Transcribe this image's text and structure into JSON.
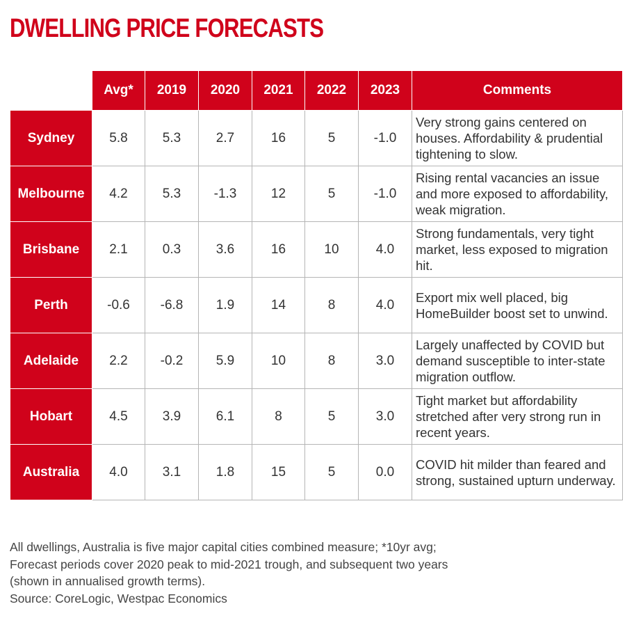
{
  "title": "DWELLING PRICE FORECASTS",
  "table": {
    "headers": [
      "Avg*",
      "2019",
      "2020",
      "2021",
      "2022",
      "2023",
      "Comments"
    ],
    "rows": [
      {
        "city": "Sydney",
        "values": [
          "5.8",
          "5.3",
          "2.7",
          "16",
          "5",
          "-1.0"
        ],
        "comment": "Very strong gains centered on houses. Affordability & prudential tightening to slow."
      },
      {
        "city": "Melbourne",
        "values": [
          "4.2",
          "5.3",
          "-1.3",
          "12",
          "5",
          "-1.0"
        ],
        "comment": "Rising rental vacancies an issue and more exposed to affordability, weak migration."
      },
      {
        "city": "Brisbane",
        "values": [
          "2.1",
          "0.3",
          "3.6",
          "16",
          "10",
          "4.0"
        ],
        "comment": "Strong fundamentals, very tight market, less exposed to migration hit."
      },
      {
        "city": "Perth",
        "values": [
          "-0.6",
          "-6.8",
          "1.9",
          "14",
          "8",
          "4.0"
        ],
        "comment": "Export mix well placed, big HomeBuilder boost set to unwind."
      },
      {
        "city": "Adelaide",
        "values": [
          "2.2",
          "-0.2",
          "5.9",
          "10",
          "8",
          "3.0"
        ],
        "comment": "Largely unaffected by COVID but demand susceptible to inter-state migration outflow."
      },
      {
        "city": "Hobart",
        "values": [
          "4.5",
          "3.9",
          "6.1",
          "8",
          "5",
          "3.0"
        ],
        "comment": "Tight market but affordability stretched after very strong run in recent years."
      },
      {
        "city": "Australia",
        "values": [
          "4.0",
          "3.1",
          "1.8",
          "15",
          "5",
          "0.0"
        ],
        "comment": "COVID hit milder than feared and strong, sustained upturn underway."
      }
    ]
  },
  "footnote": {
    "lines": [
      "All dwellings, Australia is five major capital cities combined measure; *10yr avg;",
      "Forecast periods cover 2020 peak to mid-2021 trough, and subsequent two years",
      "(shown in annualised growth terms).",
      "Source: CoreLogic, Westpac Economics"
    ]
  },
  "colors": {
    "accent": "#d0021b",
    "text": "#333333",
    "grid": "#b5b5b5"
  }
}
